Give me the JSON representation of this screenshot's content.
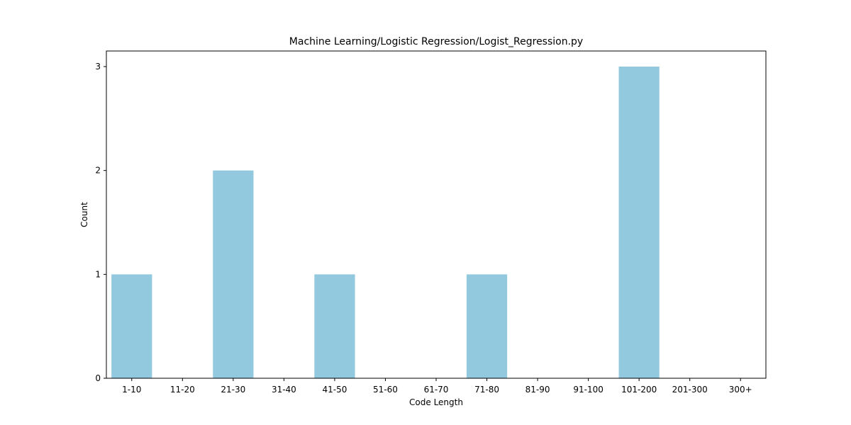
{
  "chart_data": {
    "type": "bar",
    "title": "Machine Learning/Logistic Regression/Logist_Regression.py",
    "xlabel": "Code Length",
    "ylabel": "Count",
    "categories": [
      "1-10",
      "11-20",
      "21-30",
      "31-40",
      "41-50",
      "51-60",
      "61-70",
      "71-80",
      "81-90",
      "91-100",
      "101-200",
      "201-300",
      "300+"
    ],
    "values": [
      1,
      0,
      2,
      0,
      1,
      0,
      0,
      1,
      0,
      0,
      3,
      0,
      0
    ],
    "ylim": [
      0,
      3.15
    ],
    "yticks": [
      0,
      1,
      2,
      3
    ],
    "bar_color": "#92c9df",
    "grid": false,
    "legend": "none"
  }
}
